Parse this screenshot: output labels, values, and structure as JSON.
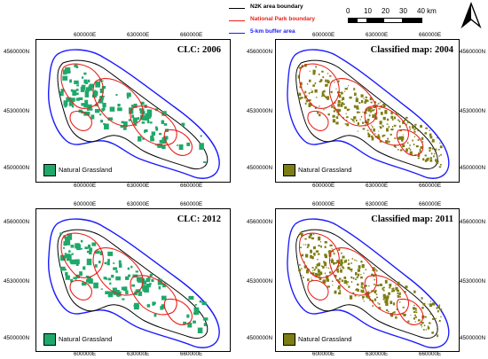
{
  "legend": {
    "items": [
      {
        "label": "N2K area boundary",
        "color": "#000000"
      },
      {
        "label": "National Park boundary",
        "color": "#e8201a"
      },
      {
        "label": "5-km buffer area",
        "color": "#1a1aff"
      }
    ]
  },
  "scale": {
    "labels": [
      "0",
      "10",
      "20",
      "30",
      "40 km"
    ]
  },
  "north_arrow": {
    "icon": "north-arrow-icon"
  },
  "colors": {
    "clc_green": "#1fa86a",
    "classified_olive": "#7d7d14"
  },
  "axes": {
    "x_ticks": [
      "600000E",
      "630000E",
      "660000E"
    ],
    "y_ticks": [
      "4560000N",
      "4530000N",
      "4500000N"
    ]
  },
  "panels": [
    {
      "title": "CLC: 2006",
      "legend_label": "Natural Grassland",
      "kind": "clc"
    },
    {
      "title": "Classified map: 2004",
      "legend_label": "Natural Grassland",
      "kind": "classified"
    },
    {
      "title": "CLC: 2012",
      "legend_label": "Natural Grassland",
      "kind": "clc"
    },
    {
      "title": "Classified map: 2011",
      "legend_label": "Natural Grassland",
      "kind": "classified"
    }
  ]
}
